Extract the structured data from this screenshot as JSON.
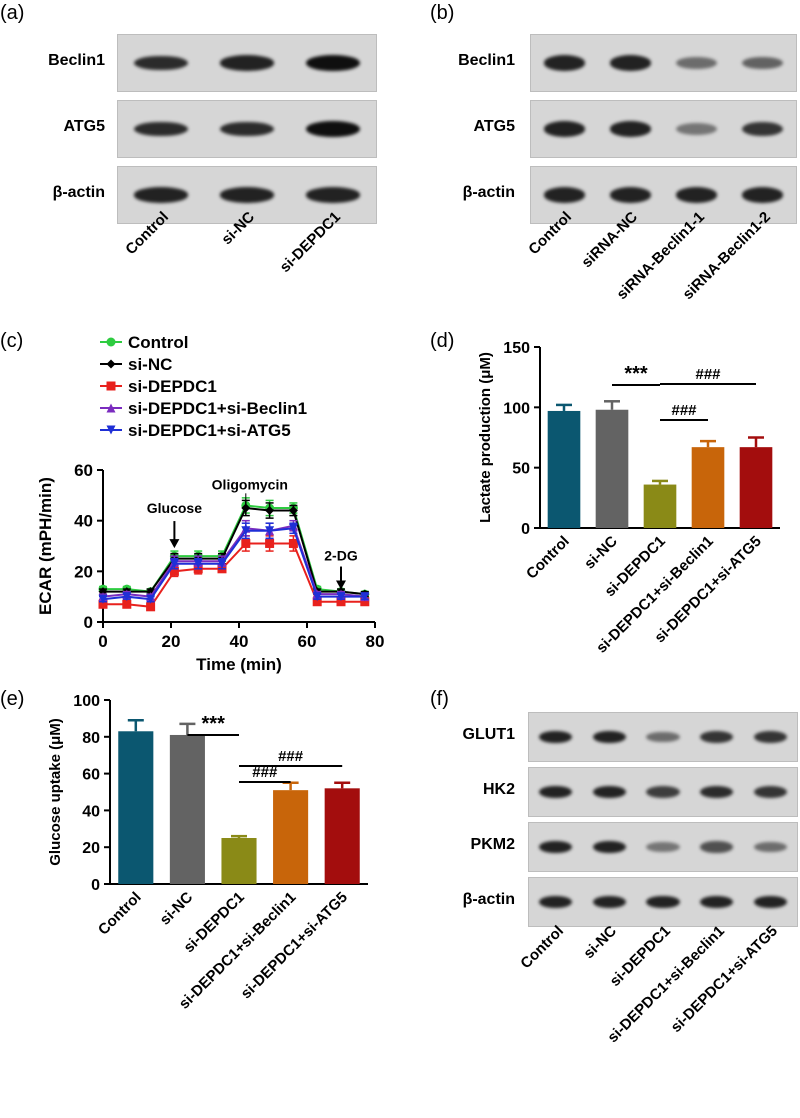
{
  "panels": {
    "a": {
      "label": "(a)",
      "rows": [
        {
          "name": "Beclin1",
          "intensity": [
            0.85,
            0.9,
            1.0
          ]
        },
        {
          "name": "ATG5",
          "intensity": [
            0.85,
            0.85,
            1.0
          ]
        },
        {
          "name": "β-actin",
          "intensity": [
            0.9,
            0.9,
            0.9
          ]
        }
      ],
      "lanes": [
        "Control",
        "si-NC",
        "si-DEPDC1"
      ]
    },
    "b": {
      "label": "(b)",
      "rows": [
        {
          "name": "Beclin1",
          "intensity": [
            0.9,
            0.9,
            0.5,
            0.55
          ]
        },
        {
          "name": "ATG5",
          "intensity": [
            0.9,
            0.9,
            0.45,
            0.8
          ]
        },
        {
          "name": "β-actin",
          "intensity": [
            0.9,
            0.9,
            0.9,
            0.9
          ]
        }
      ],
      "lanes": [
        "Control",
        "siRNA-NC",
        "siRNA-Beclin1-1",
        "siRNA-Beclin1-2"
      ]
    },
    "c": {
      "label": "(c)"
    },
    "d": {
      "label": "(d)"
    },
    "e": {
      "label": "(e)"
    },
    "f": {
      "label": "(f)",
      "rows": [
        {
          "name": "GLUT1",
          "intensity": [
            0.9,
            0.9,
            0.5,
            0.8,
            0.8
          ]
        },
        {
          "name": "HK2",
          "intensity": [
            0.9,
            0.9,
            0.75,
            0.85,
            0.8
          ]
        },
        {
          "name": "PKM2",
          "intensity": [
            0.9,
            0.9,
            0.45,
            0.65,
            0.5
          ]
        },
        {
          "name": "β-actin",
          "intensity": [
            0.9,
            0.9,
            0.9,
            0.9,
            0.9
          ]
        }
      ],
      "lanes": [
        "Control",
        "si-NC",
        "si-DEPDC1",
        "si-DEPDC1+si-Beclin1",
        "si-DEPDC1+si-ATG5"
      ]
    }
  },
  "chart_data": [
    {
      "type": "line",
      "panel": "c",
      "xlabel": "Time (min)",
      "ylabel": "ECAR (mPH/min)",
      "xlim": [
        0,
        80
      ],
      "ylim": [
        0,
        60
      ],
      "xticks": [
        0,
        20,
        40,
        60,
        80
      ],
      "yticks": [
        0,
        20,
        40,
        60
      ],
      "x": [
        0,
        7,
        14,
        21,
        28,
        35,
        42,
        49,
        56,
        63,
        70,
        77
      ],
      "series": [
        {
          "name": "Control",
          "color": "#2ecc40",
          "marker": "circle",
          "values": [
            13,
            13,
            12,
            26,
            26,
            26,
            46,
            45,
            45,
            13,
            12,
            11
          ],
          "errors": [
            1,
            1,
            1,
            2,
            2,
            2,
            3,
            3,
            2,
            1,
            1,
            1
          ]
        },
        {
          "name": "si-NC",
          "color": "#000000",
          "marker": "diamond",
          "values": [
            12,
            12,
            12,
            25,
            25,
            25,
            45,
            44,
            44,
            12,
            12,
            11
          ],
          "errors": [
            1,
            1,
            1,
            2,
            2,
            2,
            3,
            3,
            2,
            1,
            1,
            1
          ]
        },
        {
          "name": "si-DEPDC1",
          "color": "#e8211d",
          "marker": "square",
          "values": [
            7,
            7,
            6,
            20,
            21,
            21,
            31,
            31,
            31,
            8,
            8,
            8
          ],
          "errors": [
            1,
            1,
            1,
            2,
            2,
            1,
            3,
            3,
            3,
            1,
            1,
            1
          ]
        },
        {
          "name": "si-DEPDC1+si-Beclin1",
          "color": "#7b2cbf",
          "marker": "triangle-up",
          "values": [
            10,
            11,
            10,
            24,
            24,
            24,
            37,
            36,
            38,
            11,
            11,
            10
          ],
          "errors": [
            1,
            1,
            1,
            2,
            2,
            2,
            3,
            3,
            2,
            1,
            1,
            1
          ]
        },
        {
          "name": "si-DEPDC1+si-ATG5",
          "color": "#1f2fd6",
          "marker": "triangle-down",
          "values": [
            9,
            10,
            9,
            23,
            23,
            23,
            36,
            36,
            37,
            10,
            10,
            10
          ],
          "errors": [
            1,
            1,
            1,
            2,
            2,
            2,
            3,
            3,
            2,
            1,
            1,
            1
          ]
        }
      ],
      "annotations": [
        {
          "text": "Glucose",
          "x": 21,
          "y": 28
        },
        {
          "text": "Oligomycin",
          "x": 42,
          "y": 50
        },
        {
          "text": "2-DG",
          "x": 70,
          "y": 14
        }
      ]
    },
    {
      "type": "bar",
      "panel": "d",
      "ylabel": "Lactate production (μM)",
      "ylim": [
        0,
        150
      ],
      "yticks": [
        0,
        50,
        100,
        150
      ],
      "categories": [
        "Control",
        "si-NC",
        "si-DEPDC1",
        "si-DEPDC1+si-Beclin1",
        "si-DEPDC1+si-ATG5"
      ],
      "values": [
        97,
        98,
        36,
        67,
        67
      ],
      "errors": [
        5,
        7,
        3,
        5,
        8
      ],
      "colors": [
        "#0b5770",
        "#636363",
        "#8a8a17",
        "#c8650a",
        "#a30d0d"
      ],
      "significance": [
        {
          "text": "***",
          "from": 1,
          "to": 2
        },
        {
          "text": "###",
          "from": 2,
          "to": 3
        },
        {
          "text": "###",
          "from": 2,
          "to": 4
        }
      ]
    },
    {
      "type": "bar",
      "panel": "e",
      "ylabel": "Glucose uptake (μM)",
      "ylim": [
        0,
        100
      ],
      "yticks": [
        0,
        20,
        40,
        60,
        80,
        100
      ],
      "categories": [
        "Control",
        "si-NC",
        "si-DEPDC1",
        "si-DEPDC1+si-Beclin1",
        "si-DEPDC1+si-ATG5"
      ],
      "values": [
        83,
        81,
        25,
        51,
        52
      ],
      "errors": [
        6,
        6,
        1,
        4,
        3
      ],
      "colors": [
        "#0b5770",
        "#636363",
        "#8a8a17",
        "#c8650a",
        "#a30d0d"
      ],
      "significance": [
        {
          "text": "***",
          "from": 1,
          "to": 2
        },
        {
          "text": "###",
          "from": 2,
          "to": 3
        },
        {
          "text": "###",
          "from": 2,
          "to": 4
        }
      ]
    }
  ]
}
